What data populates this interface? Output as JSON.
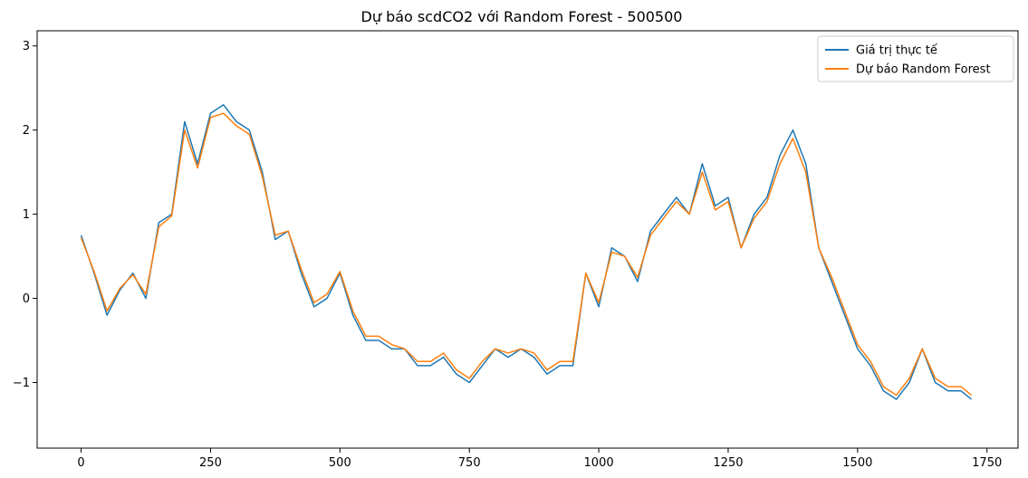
{
  "chart_data": {
    "type": "line",
    "title": "Dự báo scdCO2 với Random Forest - 500500",
    "xlabel": "",
    "ylabel": "",
    "xlim": [
      -85,
      1810
    ],
    "ylim": [
      -1.78,
      3.18
    ],
    "xticks": [
      0,
      250,
      500,
      750,
      1000,
      1250,
      1500,
      1750
    ],
    "xtick_labels": [
      "0",
      "250",
      "500",
      "750",
      "1000",
      "1250",
      "1500",
      "1750"
    ],
    "yticks": [
      -1,
      0,
      1,
      2,
      3
    ],
    "ytick_labels": [
      "−1",
      "0",
      "1",
      "2",
      "3"
    ],
    "legend_position": "top-right",
    "grid": false,
    "x": [
      0,
      25,
      50,
      75,
      100,
      125,
      150,
      175,
      200,
      225,
      250,
      275,
      300,
      325,
      350,
      375,
      400,
      425,
      450,
      475,
      500,
      525,
      550,
      575,
      600,
      625,
      650,
      675,
      700,
      725,
      750,
      775,
      800,
      825,
      850,
      875,
      900,
      925,
      950,
      975,
      1000,
      1025,
      1050,
      1075,
      1100,
      1125,
      1150,
      1175,
      1200,
      1225,
      1250,
      1275,
      1300,
      1325,
      1350,
      1375,
      1400,
      1425,
      1450,
      1475,
      1500,
      1525,
      1550,
      1575,
      1600,
      1625,
      1650,
      1675,
      1700,
      1720
    ],
    "series": [
      {
        "name": "Giá trị thực tế",
        "color": "#1f77b4",
        "values": [
          0.75,
          0.3,
          -0.2,
          0.1,
          0.3,
          0.0,
          0.9,
          1.0,
          2.1,
          1.6,
          2.2,
          2.3,
          2.1,
          2.0,
          1.5,
          0.7,
          0.8,
          0.3,
          -0.1,
          0.0,
          0.3,
          -0.2,
          -0.5,
          -0.5,
          -0.6,
          -0.6,
          -0.8,
          -0.8,
          -0.7,
          -0.9,
          -1.0,
          -0.8,
          -0.6,
          -0.7,
          -0.6,
          -0.7,
          -0.9,
          -0.8,
          -0.8,
          0.3,
          -0.1,
          0.6,
          0.5,
          0.2,
          0.8,
          1.0,
          1.2,
          1.0,
          1.6,
          1.1,
          1.2,
          0.6,
          1.0,
          1.2,
          1.7,
          2.0,
          1.6,
          0.6,
          0.2,
          -0.2,
          -0.6,
          -0.8,
          -1.1,
          -1.2,
          -1.0,
          -0.6,
          -1.0,
          -1.1,
          -1.1,
          -1.2
        ]
      },
      {
        "name": "Dự báo Random Forest",
        "color": "#ff7f0e",
        "values": [
          0.72,
          0.32,
          -0.15,
          0.12,
          0.28,
          0.05,
          0.85,
          0.98,
          2.0,
          1.55,
          2.15,
          2.2,
          2.05,
          1.95,
          1.45,
          0.75,
          0.8,
          0.35,
          -0.05,
          0.05,
          0.32,
          -0.15,
          -0.45,
          -0.45,
          -0.55,
          -0.6,
          -0.75,
          -0.75,
          -0.65,
          -0.85,
          -0.95,
          -0.75,
          -0.6,
          -0.65,
          -0.6,
          -0.65,
          -0.85,
          -0.75,
          -0.75,
          0.3,
          -0.05,
          0.55,
          0.5,
          0.25,
          0.75,
          0.95,
          1.15,
          1.0,
          1.5,
          1.05,
          1.15,
          0.6,
          0.95,
          1.15,
          1.6,
          1.9,
          1.5,
          0.6,
          0.25,
          -0.15,
          -0.55,
          -0.75,
          -1.05,
          -1.15,
          -0.95,
          -0.6,
          -0.95,
          -1.05,
          -1.05,
          -1.15
        ]
      }
    ]
  }
}
